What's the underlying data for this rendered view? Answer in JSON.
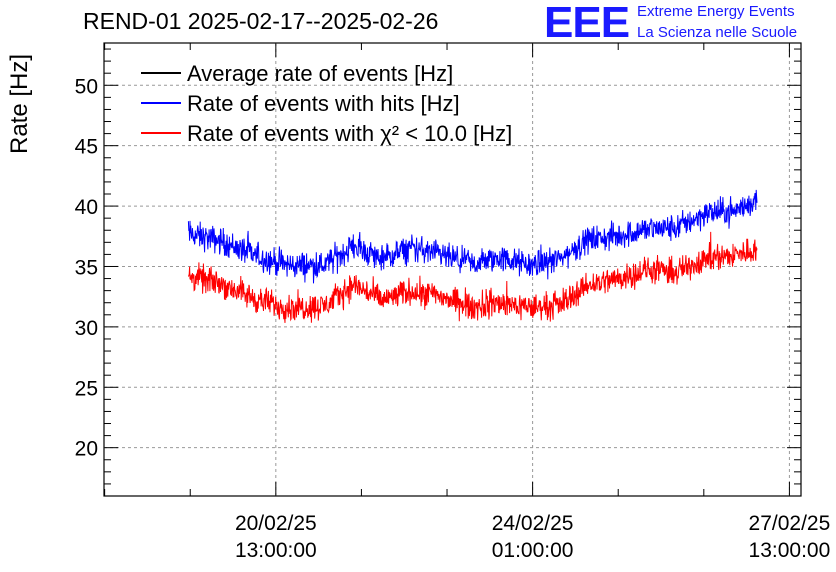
{
  "header": {
    "title": "REND-01 2025-02-17--2025-02-26",
    "logo_letters": "EEE",
    "logo_line1": "Extreme Energy Events",
    "logo_line2": "La Scienza nelle Scuole"
  },
  "chart_data": {
    "type": "line",
    "title": "REND-01 2025-02-17--2025-02-26",
    "xlabel": "",
    "ylabel": "Rate [Hz]",
    "ylim": [
      16,
      53.5
    ],
    "yticks": [
      20,
      25,
      30,
      35,
      40,
      45,
      50
    ],
    "x_unit": "days since 2025-02-17 00:00",
    "xlim": [
      1.2,
      10.7
    ],
    "xticks": [
      {
        "x": 3.542,
        "line1": "20/02/25",
        "line2": "13:00:00"
      },
      {
        "x": 7.042,
        "line1": "24/02/25",
        "line2": "01:00:00"
      },
      {
        "x": 10.542,
        "line1": "27/02/25",
        "line2": "13:00:00"
      }
    ],
    "grid": true,
    "legend_position": "top-left",
    "series": [
      {
        "name": "Average rate of events [Hz]",
        "color": "#000000",
        "x": [],
        "values": []
      },
      {
        "name": "Rate of events with hits [Hz]",
        "color": "#0000ff",
        "noise": 1.1,
        "x": [
          2.35,
          2.8,
          3.3,
          3.7,
          4.2,
          4.6,
          5.0,
          5.4,
          5.8,
          6.2,
          6.6,
          7.0,
          7.4,
          7.8,
          8.2,
          8.6,
          9.0,
          9.4,
          9.8,
          10.1
        ],
        "values": [
          37.7,
          37.1,
          35.8,
          35.1,
          35.1,
          36.7,
          35.6,
          36.6,
          35.9,
          35.2,
          35.7,
          35.1,
          35.6,
          37.2,
          37.5,
          38.1,
          38.2,
          39.4,
          39.6,
          40.5
        ]
      },
      {
        "name": "Rate of events with χ² < 10.0 [Hz]",
        "color": "#ff0000",
        "noise": 1.1,
        "x": [
          2.35,
          2.8,
          3.3,
          3.7,
          4.2,
          4.6,
          5.0,
          5.4,
          5.8,
          6.2,
          6.6,
          7.0,
          7.4,
          7.8,
          8.2,
          8.6,
          9.0,
          9.4,
          9.8,
          10.1
        ],
        "values": [
          34.2,
          33.6,
          32.2,
          31.6,
          31.7,
          33.5,
          32.2,
          33.0,
          32.5,
          31.6,
          32.0,
          31.6,
          31.8,
          33.5,
          34.0,
          34.7,
          34.5,
          35.7,
          35.9,
          36.5
        ]
      }
    ]
  }
}
